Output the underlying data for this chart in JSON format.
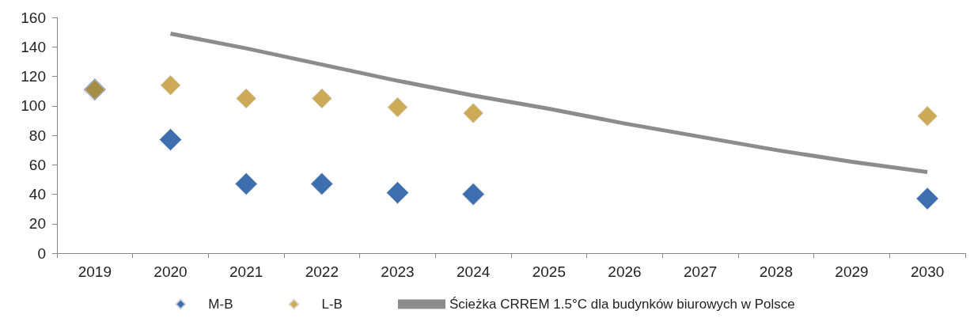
{
  "chart_data": {
    "type": "line",
    "categories": [
      "2019",
      "2020",
      "2021",
      "2022",
      "2023",
      "2024",
      "2025",
      "2026",
      "2027",
      "2028",
      "2029",
      "2030"
    ],
    "series": [
      {
        "name": "M-B",
        "type": "scatter",
        "marker": "diamond",
        "color": "#0b4a9c",
        "values": [
          111,
          77,
          47,
          47,
          41,
          40,
          null,
          null,
          null,
          null,
          null,
          37
        ]
      },
      {
        "name": "L-B",
        "type": "scatter",
        "marker": "diamond",
        "color": "#c0952b",
        "values": [
          111,
          114,
          105,
          105,
          99,
          95,
          null,
          null,
          null,
          null,
          null,
          93
        ]
      },
      {
        "name": "Ścieżka CRREM 1.5°C dla budynków biurowych w Polsce",
        "type": "line",
        "marker": "none",
        "color": "#8c8c8c",
        "values": [
          null,
          149,
          139,
          128,
          117,
          107,
          98,
          88,
          79,
          70,
          62,
          55
        ]
      }
    ],
    "ylim": [
      0,
      160
    ],
    "yticks": [
      0,
      20,
      40,
      60,
      80,
      100,
      120,
      140,
      160
    ],
    "grid": false,
    "legend": "bottom"
  }
}
